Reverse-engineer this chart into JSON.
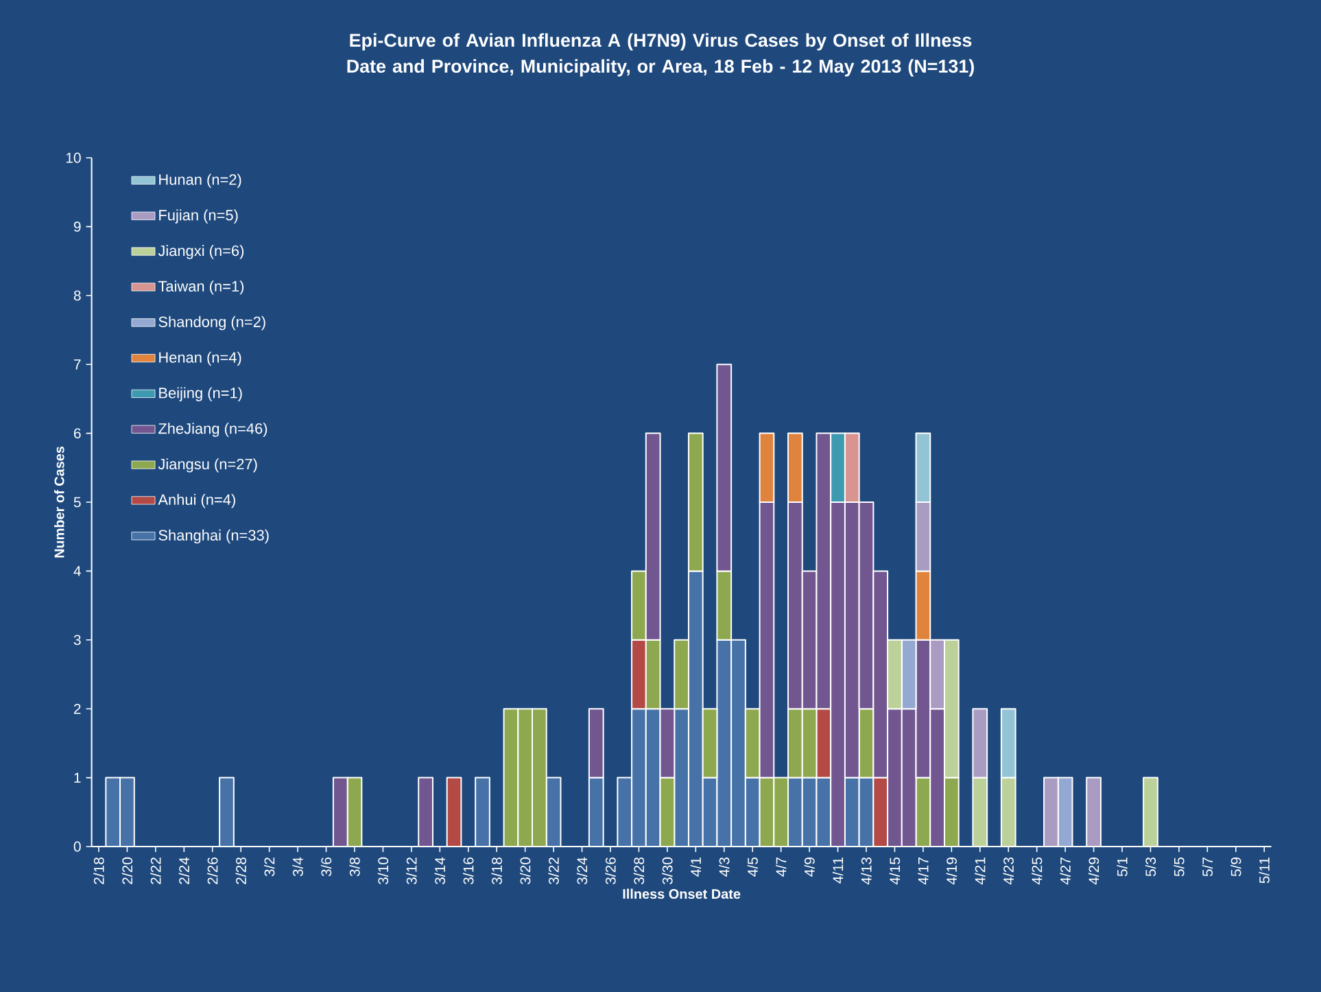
{
  "chart_data": {
    "type": "bar",
    "stacked": true,
    "title": "Epi-Curve of Avian Influenza A (H7N9) Virus Cases by Onset of Illness Date and Province, Municipality, or Area, 18 Feb - 12 May 2013 (N=131)",
    "xlabel": "Illness Onset Date",
    "ylabel": "Number of Cases",
    "categories": [
      "2/18",
      null,
      "2/20",
      null,
      "2/22",
      null,
      "2/24",
      null,
      "2/26",
      null,
      "2/28",
      null,
      "3/2",
      null,
      "3/4",
      null,
      "3/6",
      null,
      "3/8",
      null,
      "3/10",
      null,
      "3/12",
      null,
      "3/14",
      null,
      "3/16",
      null,
      "3/18",
      null,
      "3/20",
      null,
      "3/22",
      null,
      "3/24",
      null,
      "3/26",
      null,
      "3/28",
      null,
      "3/30",
      null,
      "4/1",
      null,
      "4/3",
      null,
      "4/5",
      null,
      "4/7",
      null,
      "4/9",
      null,
      "4/11",
      null,
      "4/13",
      null,
      "4/15",
      null,
      "4/17",
      null,
      "4/19",
      null,
      "4/21",
      null,
      "4/23",
      null,
      "4/25",
      null,
      "4/27",
      null,
      "4/29",
      null,
      "5/1",
      null,
      "5/3",
      null,
      "5/5",
      null,
      "5/7",
      null,
      "5/9",
      null,
      "5/11"
    ],
    "ylim": [
      0,
      10
    ],
    "yticks": [
      0,
      1,
      2,
      3,
      4,
      5,
      6,
      7,
      8,
      9,
      10
    ],
    "legend": "top left",
    "series": [
      {
        "name": "Shanghai (n=33)",
        "color": "#4672a8",
        "values": [
          null,
          1,
          1,
          null,
          null,
          null,
          null,
          null,
          null,
          1,
          null,
          null,
          null,
          null,
          null,
          null,
          null,
          null,
          null,
          null,
          null,
          null,
          null,
          null,
          null,
          null,
          null,
          1,
          null,
          null,
          null,
          null,
          1,
          null,
          null,
          1,
          null,
          1,
          2,
          2,
          null,
          2,
          4,
          1,
          3,
          3,
          1,
          null,
          null,
          1,
          1,
          1,
          null,
          1,
          1,
          null,
          null,
          null,
          null,
          null,
          null,
          null,
          null,
          null,
          null,
          null,
          null,
          null,
          null,
          null,
          null,
          null,
          null,
          null,
          null,
          null,
          null,
          null,
          null,
          null,
          null,
          null,
          null
        ]
      },
      {
        "name": "Anhui (n=4)",
        "color": "#b34a46",
        "values": [
          null,
          null,
          null,
          null,
          null,
          null,
          null,
          null,
          null,
          null,
          null,
          null,
          null,
          null,
          null,
          null,
          null,
          null,
          null,
          null,
          null,
          null,
          null,
          null,
          null,
          1,
          null,
          null,
          null,
          null,
          null,
          null,
          null,
          null,
          null,
          null,
          null,
          null,
          1,
          null,
          null,
          null,
          null,
          null,
          null,
          null,
          null,
          null,
          null,
          null,
          null,
          1,
          null,
          null,
          null,
          1,
          null,
          null,
          null,
          null,
          null,
          null,
          null,
          null,
          null,
          null,
          null,
          null,
          null,
          null,
          null,
          null,
          null,
          null,
          null,
          null,
          null,
          null,
          null,
          null,
          null,
          null,
          null
        ]
      },
      {
        "name": "Jiangsu (n=27)",
        "color": "#8ea84f",
        "values": [
          null,
          null,
          null,
          null,
          null,
          null,
          null,
          null,
          null,
          null,
          null,
          null,
          null,
          null,
          null,
          null,
          null,
          null,
          1,
          null,
          null,
          null,
          null,
          null,
          null,
          null,
          null,
          null,
          null,
          2,
          2,
          2,
          null,
          null,
          null,
          null,
          null,
          null,
          1,
          1,
          1,
          1,
          2,
          1,
          1,
          null,
          1,
          1,
          1,
          1,
          1,
          null,
          null,
          null,
          1,
          null,
          null,
          null,
          1,
          null,
          1,
          null,
          null,
          null,
          null,
          null,
          null,
          null,
          null,
          null,
          null,
          null,
          null,
          null,
          null,
          null,
          null,
          null,
          null,
          null,
          null,
          null,
          null
        ]
      },
      {
        "name": "ZheJiang (n=46)",
        "color": "#715690",
        "values": [
          null,
          null,
          null,
          null,
          null,
          null,
          null,
          null,
          null,
          null,
          null,
          null,
          null,
          null,
          null,
          null,
          null,
          1,
          null,
          null,
          null,
          null,
          null,
          1,
          null,
          null,
          null,
          null,
          null,
          null,
          null,
          null,
          null,
          null,
          null,
          1,
          null,
          null,
          null,
          3,
          1,
          null,
          null,
          null,
          3,
          null,
          null,
          4,
          null,
          3,
          2,
          4,
          5,
          4,
          3,
          3,
          2,
          2,
          2,
          2,
          null,
          null,
          null,
          null,
          null,
          null,
          null,
          null,
          null,
          null,
          null,
          null,
          null,
          null,
          null,
          null,
          null,
          null,
          null,
          null,
          null,
          null,
          null
        ]
      },
      {
        "name": "Beijing (n=1)",
        "color": "#3d9ab0",
        "values": [
          null,
          null,
          null,
          null,
          null,
          null,
          null,
          null,
          null,
          null,
          null,
          null,
          null,
          null,
          null,
          null,
          null,
          null,
          null,
          null,
          null,
          null,
          null,
          null,
          null,
          null,
          null,
          null,
          null,
          null,
          null,
          null,
          null,
          null,
          null,
          null,
          null,
          null,
          null,
          null,
          null,
          null,
          null,
          null,
          null,
          null,
          null,
          null,
          null,
          null,
          null,
          null,
          1,
          null,
          null,
          null,
          null,
          null,
          null,
          null,
          null,
          null,
          null,
          null,
          null,
          null,
          null,
          null,
          null,
          null,
          null,
          null,
          null,
          null,
          null,
          null,
          null,
          null,
          null,
          null,
          null,
          null,
          null
        ]
      },
      {
        "name": "Henan (n=4)",
        "color": "#e0843d",
        "values": [
          null,
          null,
          null,
          null,
          null,
          null,
          null,
          null,
          null,
          null,
          null,
          null,
          null,
          null,
          null,
          null,
          null,
          null,
          null,
          null,
          null,
          null,
          null,
          null,
          null,
          null,
          null,
          null,
          null,
          null,
          null,
          null,
          null,
          null,
          null,
          null,
          null,
          null,
          null,
          null,
          null,
          null,
          null,
          null,
          null,
          null,
          null,
          1,
          null,
          1,
          null,
          null,
          null,
          null,
          null,
          null,
          null,
          null,
          1,
          null,
          null,
          null,
          null,
          null,
          null,
          null,
          null,
          null,
          null,
          null,
          null,
          null,
          null,
          null,
          null,
          null,
          null,
          null,
          null,
          null,
          null,
          null,
          null
        ]
      },
      {
        "name": "Shandong (n=2)",
        "color": "#93a9d2",
        "values": [
          null,
          null,
          null,
          null,
          null,
          null,
          null,
          null,
          null,
          null,
          null,
          null,
          null,
          null,
          null,
          null,
          null,
          null,
          null,
          null,
          null,
          null,
          null,
          null,
          null,
          null,
          null,
          null,
          null,
          null,
          null,
          null,
          null,
          null,
          null,
          null,
          null,
          null,
          null,
          null,
          null,
          null,
          null,
          null,
          null,
          null,
          null,
          null,
          null,
          null,
          null,
          null,
          null,
          null,
          null,
          null,
          null,
          1,
          null,
          null,
          null,
          null,
          null,
          null,
          null,
          null,
          null,
          null,
          1,
          null,
          null,
          null,
          null,
          null,
          null,
          null,
          null,
          null,
          null,
          null,
          null,
          null,
          null
        ]
      },
      {
        "name": "Taiwan (n=1)",
        "color": "#d89490",
        "values": [
          null,
          null,
          null,
          null,
          null,
          null,
          null,
          null,
          null,
          null,
          null,
          null,
          null,
          null,
          null,
          null,
          null,
          null,
          null,
          null,
          null,
          null,
          null,
          null,
          null,
          null,
          null,
          null,
          null,
          null,
          null,
          null,
          null,
          null,
          null,
          null,
          null,
          null,
          null,
          null,
          null,
          null,
          null,
          null,
          null,
          null,
          null,
          null,
          null,
          null,
          null,
          null,
          null,
          1,
          null,
          null,
          null,
          null,
          null,
          null,
          null,
          null,
          null,
          null,
          null,
          null,
          null,
          null,
          null,
          null,
          null,
          null,
          null,
          null,
          null,
          null,
          null,
          null,
          null,
          null,
          null,
          null,
          null
        ]
      },
      {
        "name": "Jiangxi (n=6)",
        "color": "#bcd09a",
        "values": [
          null,
          null,
          null,
          null,
          null,
          null,
          null,
          null,
          null,
          null,
          null,
          null,
          null,
          null,
          null,
          null,
          null,
          null,
          null,
          null,
          null,
          null,
          null,
          null,
          null,
          null,
          null,
          null,
          null,
          null,
          null,
          null,
          null,
          null,
          null,
          null,
          null,
          null,
          null,
          null,
          null,
          null,
          null,
          null,
          null,
          null,
          null,
          null,
          null,
          null,
          null,
          null,
          null,
          null,
          null,
          null,
          1,
          null,
          null,
          null,
          2,
          null,
          1,
          null,
          1,
          null,
          null,
          null,
          null,
          null,
          null,
          null,
          null,
          null,
          1,
          null,
          null,
          null,
          null,
          null,
          null,
          null,
          null
        ]
      },
      {
        "name": "Fujian (n=5)",
        "color": "#a99bc2",
        "values": [
          null,
          null,
          null,
          null,
          null,
          null,
          null,
          null,
          null,
          null,
          null,
          null,
          null,
          null,
          null,
          null,
          null,
          null,
          null,
          null,
          null,
          null,
          null,
          null,
          null,
          null,
          null,
          null,
          null,
          null,
          null,
          null,
          null,
          null,
          null,
          null,
          null,
          null,
          null,
          null,
          null,
          null,
          null,
          null,
          null,
          null,
          null,
          null,
          null,
          null,
          null,
          null,
          null,
          null,
          null,
          null,
          null,
          null,
          1,
          1,
          null,
          null,
          1,
          null,
          null,
          null,
          null,
          1,
          null,
          null,
          1,
          null,
          null,
          null,
          null,
          null,
          null,
          null,
          null,
          null,
          null,
          null,
          null
        ]
      },
      {
        "name": "Hunan (n=2)",
        "color": "#92c4d6",
        "values": [
          null,
          null,
          null,
          null,
          null,
          null,
          null,
          null,
          null,
          null,
          null,
          null,
          null,
          null,
          null,
          null,
          null,
          null,
          null,
          null,
          null,
          null,
          null,
          null,
          null,
          null,
          null,
          null,
          null,
          null,
          null,
          null,
          null,
          null,
          null,
          null,
          null,
          null,
          null,
          null,
          null,
          null,
          null,
          null,
          null,
          null,
          null,
          null,
          null,
          null,
          null,
          null,
          null,
          null,
          null,
          null,
          null,
          null,
          1,
          null,
          null,
          null,
          null,
          null,
          1,
          null,
          null,
          null,
          null,
          null,
          null,
          null,
          null,
          null,
          null,
          null,
          null,
          null,
          null,
          null,
          null,
          null,
          null
        ]
      }
    ]
  }
}
